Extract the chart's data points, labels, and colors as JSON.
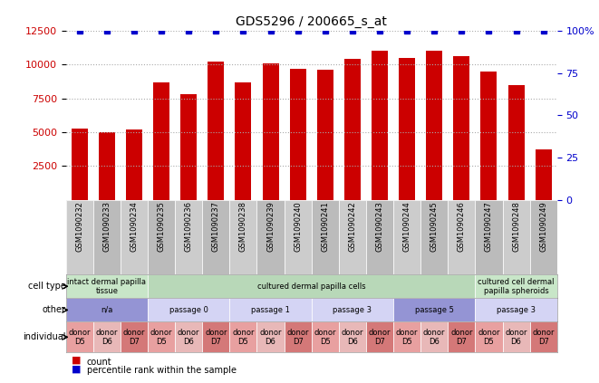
{
  "title": "GDS5296 / 200665_s_at",
  "samples": [
    "GSM1090232",
    "GSM1090233",
    "GSM1090234",
    "GSM1090235",
    "GSM1090236",
    "GSM1090237",
    "GSM1090238",
    "GSM1090239",
    "GSM1090240",
    "GSM1090241",
    "GSM1090242",
    "GSM1090243",
    "GSM1090244",
    "GSM1090245",
    "GSM1090246",
    "GSM1090247",
    "GSM1090248",
    "GSM1090249"
  ],
  "counts": [
    5300,
    5000,
    5200,
    8700,
    7800,
    10200,
    8700,
    10100,
    9700,
    9600,
    10400,
    11000,
    10500,
    11000,
    10600,
    9500,
    8500,
    3700
  ],
  "percentiles": [
    100,
    100,
    100,
    100,
    100,
    100,
    100,
    100,
    100,
    100,
    100,
    100,
    100,
    100,
    100,
    100,
    100,
    100
  ],
  "bar_color": "#cc0000",
  "dot_color": "#0000cc",
  "ylim_left": [
    0,
    12500
  ],
  "ylim_right": [
    0,
    100
  ],
  "yticks_left": [
    2500,
    5000,
    7500,
    10000,
    12500
  ],
  "yticks_right": [
    0,
    25,
    50,
    75,
    100
  ],
  "cell_type_groups": [
    {
      "label": "intact dermal papilla\ntissue",
      "start": 0,
      "end": 3,
      "color": "#c8e6c8"
    },
    {
      "label": "cultured dermal papilla cells",
      "start": 3,
      "end": 15,
      "color": "#b8d8b8"
    },
    {
      "label": "cultured cell dermal\npapilla spheroids",
      "start": 15,
      "end": 18,
      "color": "#c8e6c8"
    }
  ],
  "other_groups": [
    {
      "label": "n/a",
      "start": 0,
      "end": 3,
      "color": "#9494d4"
    },
    {
      "label": "passage 0",
      "start": 3,
      "end": 6,
      "color": "#d4d4f4"
    },
    {
      "label": "passage 1",
      "start": 6,
      "end": 9,
      "color": "#d4d4f4"
    },
    {
      "label": "passage 3",
      "start": 9,
      "end": 12,
      "color": "#d4d4f4"
    },
    {
      "label": "passage 5",
      "start": 12,
      "end": 15,
      "color": "#9494d4"
    },
    {
      "label": "passage 3",
      "start": 15,
      "end": 18,
      "color": "#d4d4f4"
    }
  ],
  "individual_groups": [
    {
      "label": "donor\nD5",
      "start": 0,
      "end": 1,
      "color": "#e8a0a0"
    },
    {
      "label": "donor\nD6",
      "start": 1,
      "end": 2,
      "color": "#e8b8b8"
    },
    {
      "label": "donor\nD7",
      "start": 2,
      "end": 3,
      "color": "#d47878"
    },
    {
      "label": "donor\nD5",
      "start": 3,
      "end": 4,
      "color": "#e8a0a0"
    },
    {
      "label": "donor\nD6",
      "start": 4,
      "end": 5,
      "color": "#e8b8b8"
    },
    {
      "label": "donor\nD7",
      "start": 5,
      "end": 6,
      "color": "#d47878"
    },
    {
      "label": "donor\nD5",
      "start": 6,
      "end": 7,
      "color": "#e8a0a0"
    },
    {
      "label": "donor\nD6",
      "start": 7,
      "end": 8,
      "color": "#e8b8b8"
    },
    {
      "label": "donor\nD7",
      "start": 8,
      "end": 9,
      "color": "#d47878"
    },
    {
      "label": "donor\nD5",
      "start": 9,
      "end": 10,
      "color": "#e8a0a0"
    },
    {
      "label": "donor\nD6",
      "start": 10,
      "end": 11,
      "color": "#e8b8b8"
    },
    {
      "label": "donor\nD7",
      "start": 11,
      "end": 12,
      "color": "#d47878"
    },
    {
      "label": "donor\nD5",
      "start": 12,
      "end": 13,
      "color": "#e8a0a0"
    },
    {
      "label": "donor\nD6",
      "start": 13,
      "end": 14,
      "color": "#e8b8b8"
    },
    {
      "label": "donor\nD7",
      "start": 14,
      "end": 15,
      "color": "#d47878"
    },
    {
      "label": "donor\nD5",
      "start": 15,
      "end": 16,
      "color": "#e8a0a0"
    },
    {
      "label": "donor\nD6",
      "start": 16,
      "end": 17,
      "color": "#e8b8b8"
    },
    {
      "label": "donor\nD7",
      "start": 17,
      "end": 18,
      "color": "#d47878"
    }
  ],
  "row_labels": [
    "cell type",
    "other",
    "individual"
  ],
  "legend_count_color": "#cc0000",
  "legend_percentile_color": "#0000cc",
  "background_color": "#ffffff",
  "grid_color": "#aaaaaa"
}
